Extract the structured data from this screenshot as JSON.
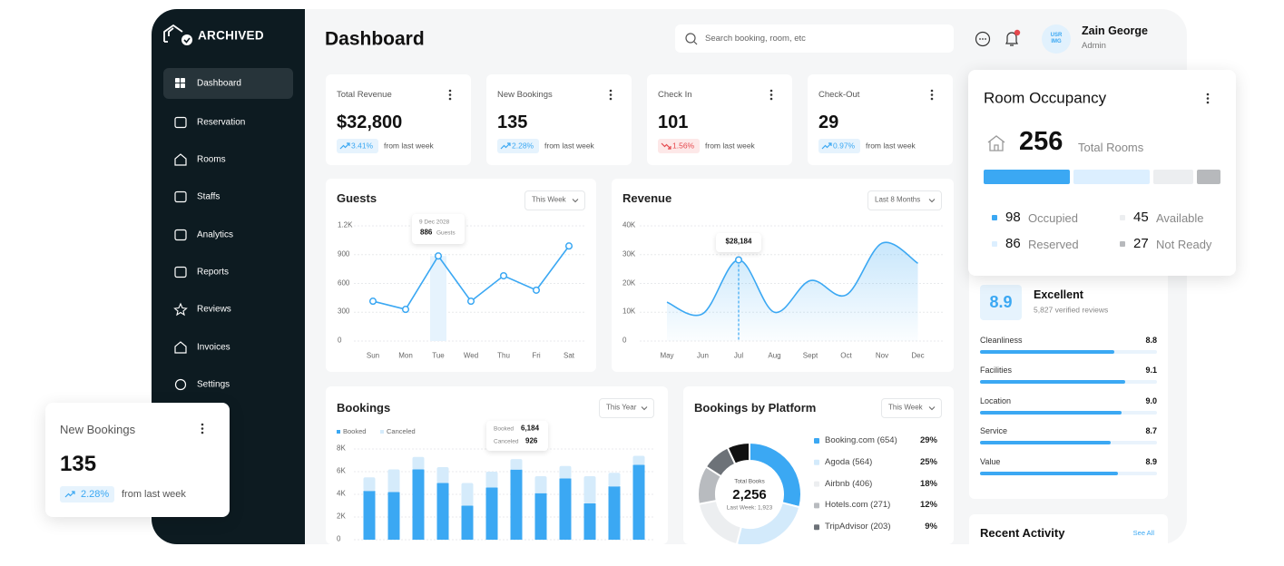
{
  "sidebar": {
    "logo": "ARCHIVED",
    "menu": [
      "Dashboard",
      "Reservation",
      "Rooms",
      "Staffs",
      "Analytics",
      "Reports",
      "Reviews",
      "Invoices",
      "Settings"
    ]
  },
  "header": {
    "title": "Dashboard",
    "search_placeholder": "Search booking, room, etc",
    "avatar": "USR IMG",
    "user_name": "Zain George",
    "user_role": "Admin"
  },
  "stats": [
    {
      "label": "Total Revenue",
      "value": "$32,800",
      "change": "3.41%",
      "trend": "up",
      "note": "from last week"
    },
    {
      "label": "New Bookings",
      "value": "135",
      "change": "2.28%",
      "trend": "up",
      "note": "from last week"
    },
    {
      "label": "Check In",
      "value": "101",
      "change": "1.56%",
      "trend": "down",
      "note": "from last week"
    },
    {
      "label": "Check-Out",
      "value": "29",
      "change": "0.97%",
      "trend": "up",
      "note": "from last week"
    }
  ],
  "guests": {
    "type": "line",
    "title": "Guests",
    "filter": "This Week",
    "categories": [
      "Sun",
      "Mon",
      "Tue",
      "Wed",
      "Thu",
      "Fri",
      "Sat"
    ],
    "values": [
      415,
      330,
      886,
      415,
      680,
      530,
      990
    ],
    "color": "#3ba8f3",
    "ylim": [
      0,
      1200
    ],
    "yticks": [
      0,
      300,
      600,
      900,
      {
        "value": 1200,
        "label": "1.2K"
      }
    ],
    "grid": true,
    "tooltip": {
      "date": "9 Dec 2028",
      "unit": "Guests"
    }
  },
  "revenue": {
    "type": "area",
    "title": "Revenue",
    "filter": "Last 8 Months",
    "categories": [
      "May",
      "Jun",
      "Jul",
      "Aug",
      "Sept",
      "Oct",
      "Nov",
      "Dec"
    ],
    "values": [
      13500,
      9500,
      28184,
      10000,
      21000,
      16000,
      34000,
      27000
    ],
    "color": "#3ba8f3",
    "ylim": [
      0,
      40000
    ],
    "yticks": [
      0,
      {
        "value": 10000,
        "label": "10K"
      },
      {
        "value": 20000,
        "label": "20K"
      },
      {
        "value": 30000,
        "label": "30K"
      },
      {
        "value": 40000,
        "label": "40K"
      }
    ],
    "grid": true,
    "tooltip": "$28,184"
  },
  "bookings": {
    "type": "bar",
    "stacked": true,
    "title": "Bookings",
    "filter": "This Year",
    "series": [
      {
        "name": "Booked",
        "color": "#3ba8f3",
        "values": [
          4300,
          4200,
          6200,
          5000,
          3000,
          4600,
          6184,
          4100,
          5400,
          3200,
          4700,
          6600
        ]
      },
      {
        "name": "Canceled",
        "color": "#d5ebfb",
        "values": [
          1200,
          2000,
          1100,
          1400,
          2000,
          1400,
          926,
          1500,
          1100,
          2400,
          1200,
          800
        ]
      }
    ],
    "ylim": [
      0,
      8000
    ],
    "yticks": [
      0,
      {
        "value": 2000,
        "label": "2K"
      },
      {
        "value": 4000,
        "label": "4K"
      },
      {
        "value": 6000,
        "label": "6K"
      },
      {
        "value": 8000,
        "label": "8K"
      }
    ],
    "grid": true,
    "tooltip": {
      "booked": "6,184"
    }
  },
  "platforms": {
    "type": "donut",
    "title": "Bookings by Platform",
    "filter": "This Week",
    "center_label": "Total Books",
    "total": "2,256",
    "last_week": "Last Week: 1,923",
    "items": [
      {
        "name": "Booking.com (654)",
        "value": 29,
        "value_label": "29%",
        "color": "#3ba8f3"
      },
      {
        "name": "Agoda (564)",
        "value": 25,
        "value_label": "25%",
        "color": "#d3eafb"
      },
      {
        "name": "Airbnb (406)",
        "value": 18,
        "value_label": "18%",
        "color": "#eceef0"
      },
      {
        "name": "Hotels.com (271)",
        "value": 12,
        "value_label": "12%",
        "color": "#b8bbbf"
      },
      {
        "name": "TripAdvisor (203)",
        "value": 9,
        "value_label": "9%",
        "color": "#6d7278"
      }
    ]
  },
  "occupancy": {
    "title": "Room Occupancy",
    "total": 256,
    "total_label": "Total Rooms",
    "items": [
      {
        "name": "Occupied",
        "value": 98,
        "color": "#3ba8f3"
      },
      {
        "name": "Reserved",
        "value": 86,
        "color": "#dcefff"
      },
      {
        "name": "Available",
        "value": 45,
        "color": "#eceef0"
      },
      {
        "name": "Not Ready",
        "value": 27,
        "color": "#b7b9bc"
      }
    ]
  },
  "reviews": {
    "score": 8.9,
    "rating": "Excellent",
    "count": "5,827 verified reviews",
    "xlim": [
      5,
      10
    ],
    "color": "#3ba8f3",
    "items": [
      {
        "name": "Cleanliness",
        "value": 8.8
      },
      {
        "name": "Facilities",
        "value": 9.1
      },
      {
        "name": "Location",
        "value": 9,
        "value_label": "9.0"
      },
      {
        "name": "Service",
        "value": 8.7
      },
      {
        "name": "Value",
        "value": 8.9
      }
    ]
  },
  "recent_activity": {
    "title": "Recent Activity",
    "link": "See All"
  }
}
